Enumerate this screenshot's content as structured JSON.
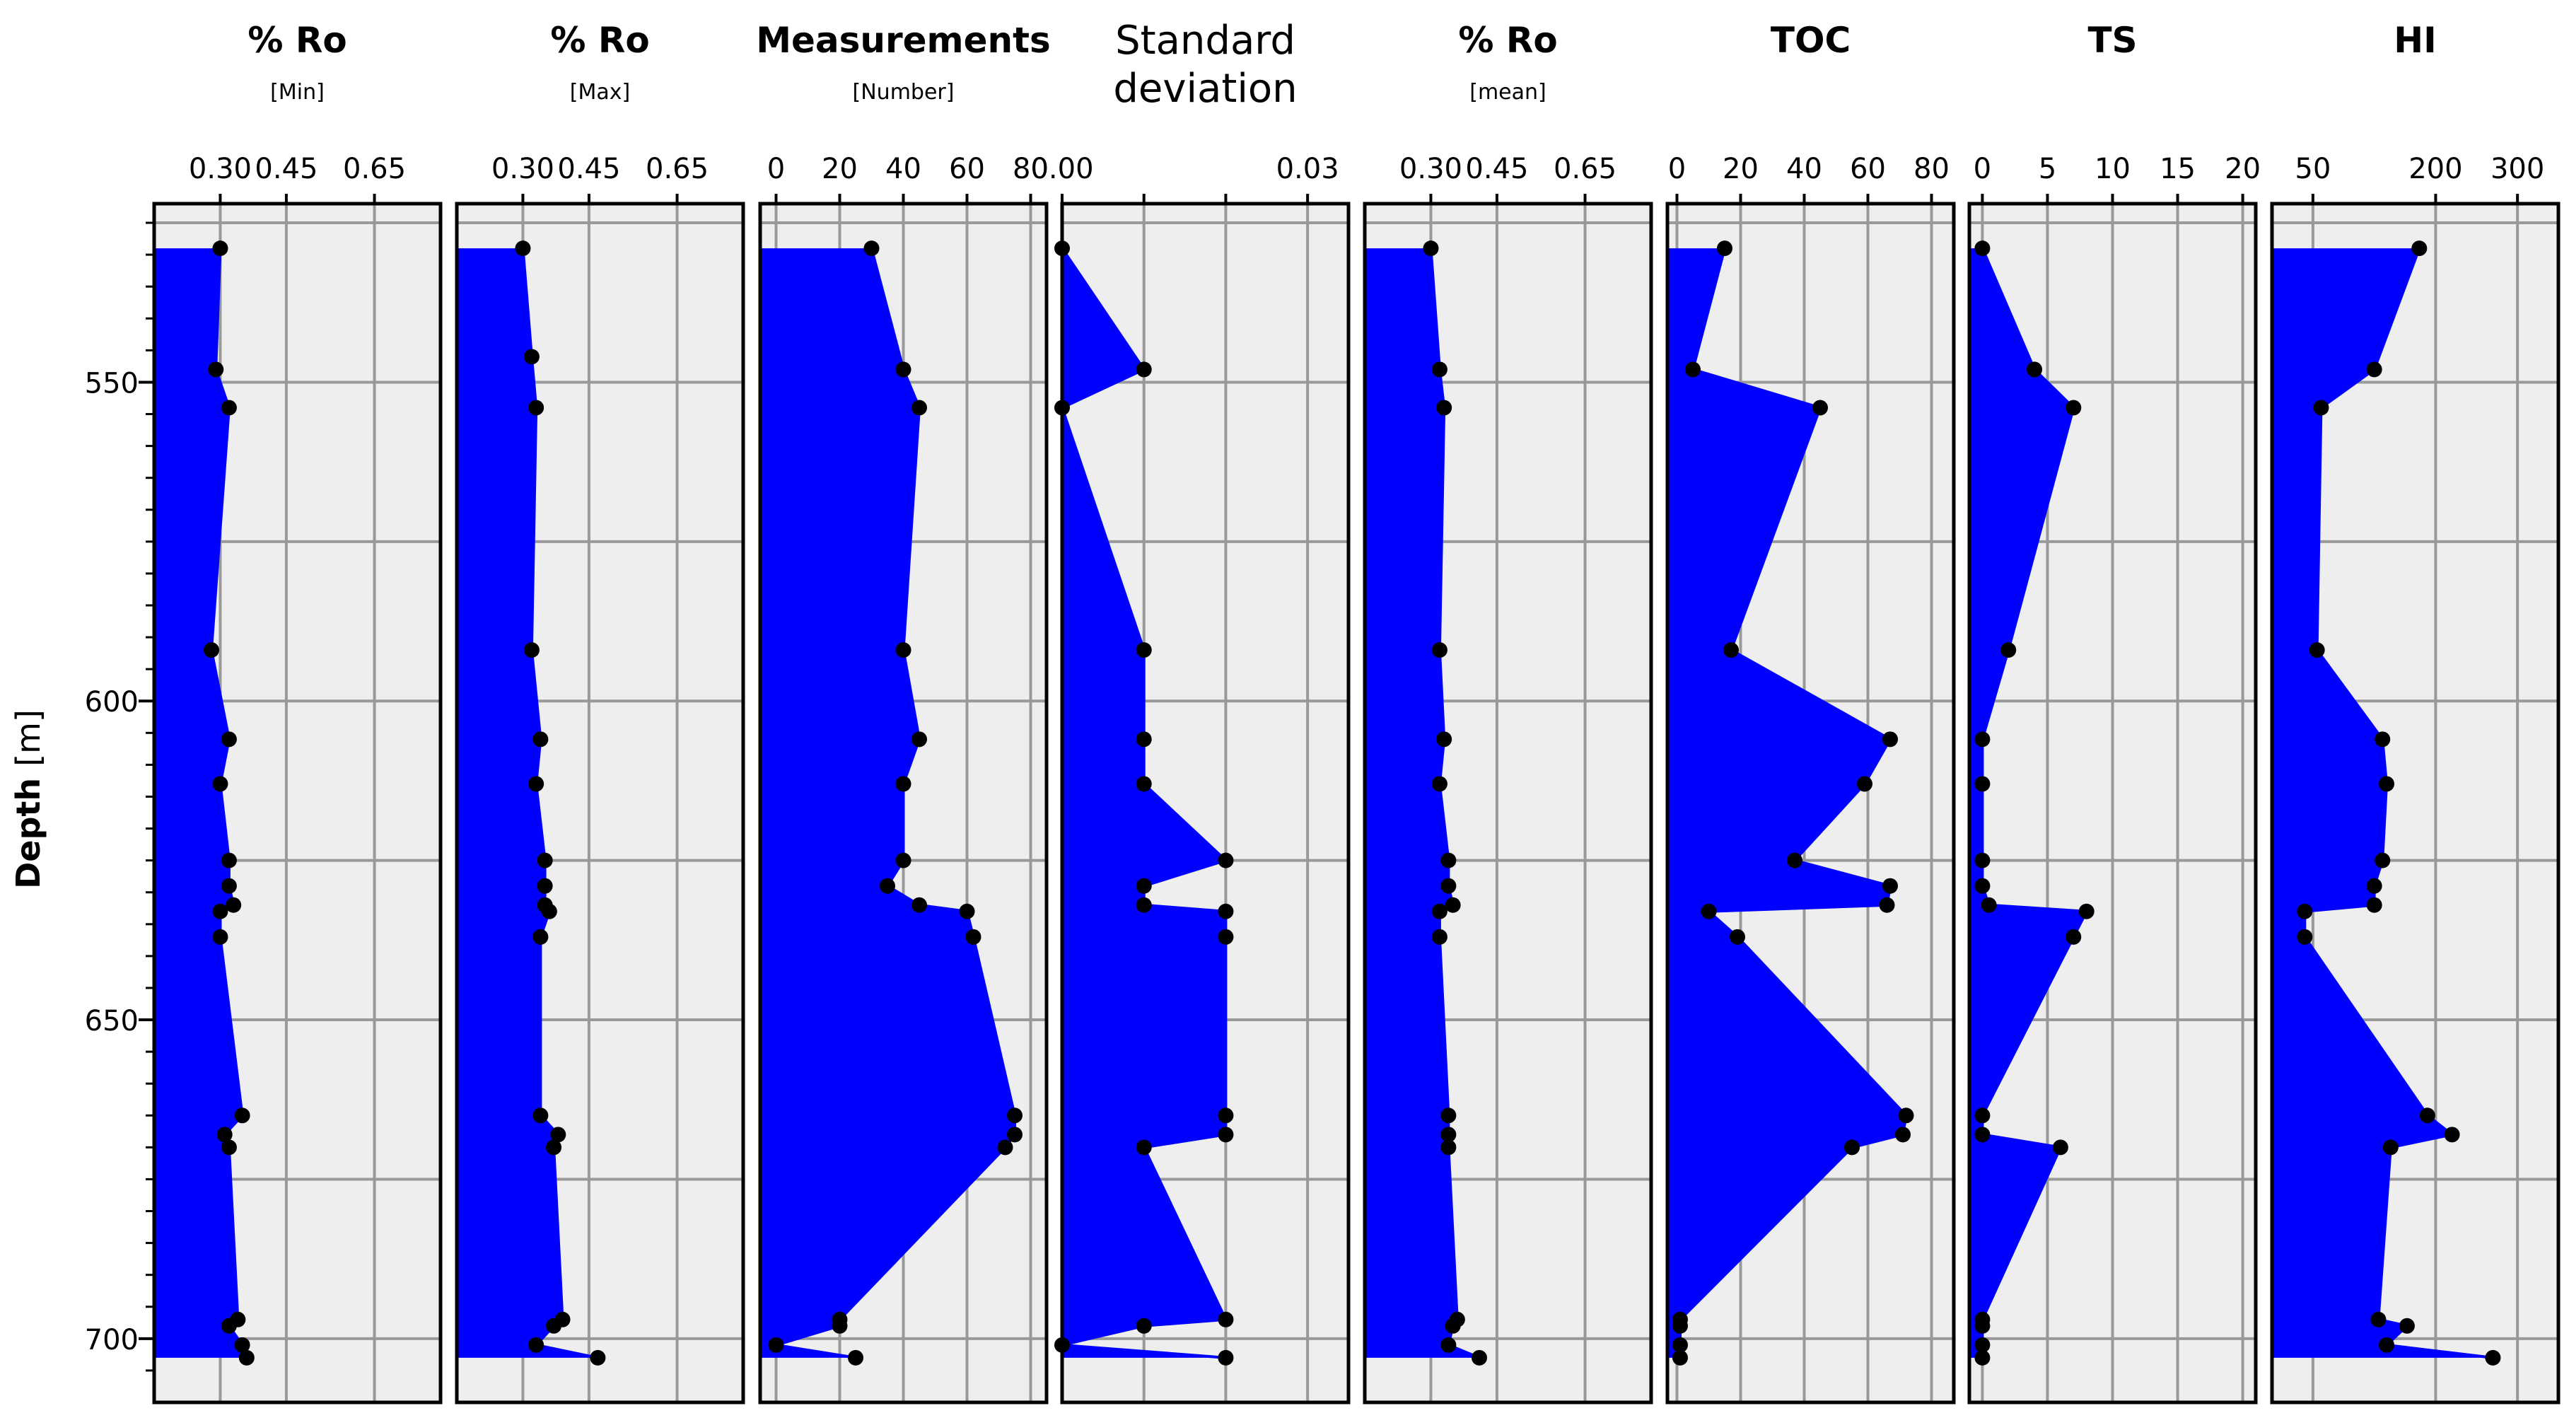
{
  "figure": {
    "ylabel": "Depth",
    "yunit": "[m]",
    "depth_ticks": [
      "550",
      "600",
      "650",
      "700"
    ]
  },
  "colors": {
    "fill": "#0000ff",
    "point": "#000000",
    "panel_bg": "#eeeeee",
    "grid": "#999999",
    "frame": "#000000"
  },
  "chart_data": [
    {
      "type": "area",
      "orientation": "vertical-depth-log",
      "title": "% Ro",
      "subtitle": "[Min]",
      "xlim": [
        0.15,
        0.8
      ],
      "ylim": [
        522,
        710
      ],
      "xticks": [
        0.3,
        0.45,
        0.65
      ],
      "xtick_labels": [
        "0.30",
        "0.45",
        "0.65"
      ],
      "x": [
        0.3,
        0.29,
        0.32,
        0.28,
        0.32,
        0.3,
        0.32,
        0.32,
        0.33,
        0.3,
        0.3,
        0.35,
        0.31,
        0.32,
        0.34,
        0.32,
        0.35,
        0.36
      ],
      "depth": [
        529,
        548,
        554,
        592,
        606,
        613,
        625,
        629,
        632,
        633,
        637,
        665,
        668,
        670,
        697,
        698,
        701,
        703
      ]
    },
    {
      "type": "area",
      "orientation": "vertical-depth-log",
      "title": "% Ro",
      "subtitle": "[Max]",
      "xlim": [
        0.15,
        0.8
      ],
      "ylim": [
        522,
        710
      ],
      "xticks": [
        0.3,
        0.45,
        0.65
      ],
      "xtick_labels": [
        "0.30",
        "0.45",
        "0.65"
      ],
      "x": [
        0.3,
        0.32,
        0.33,
        0.32,
        0.34,
        0.33,
        0.35,
        0.35,
        0.35,
        0.36,
        0.34,
        0.34,
        0.38,
        0.37,
        0.39,
        0.37,
        0.33,
        0.47
      ],
      "depth": [
        529,
        546,
        554,
        592,
        606,
        613,
        625,
        629,
        632,
        633,
        637,
        665,
        668,
        670,
        697,
        698,
        701,
        703
      ]
    },
    {
      "type": "area",
      "orientation": "vertical-depth-log",
      "title": "Measurements",
      "subtitle": "[Number]",
      "xlim": [
        -5,
        85
      ],
      "ylim": [
        522,
        710
      ],
      "xticks": [
        0,
        20,
        40,
        60,
        80
      ],
      "xtick_labels": [
        "0",
        "20",
        "40",
        "60",
        "80"
      ],
      "x": [
        30,
        40,
        45,
        40,
        45,
        40,
        40,
        35,
        45,
        60,
        62,
        75,
        75,
        72,
        20,
        20,
        0,
        25
      ],
      "depth": [
        529,
        548,
        554,
        592,
        606,
        613,
        625,
        629,
        632,
        633,
        637,
        665,
        668,
        670,
        697,
        698,
        701,
        703
      ]
    },
    {
      "type": "area",
      "orientation": "vertical-depth-log",
      "title": "Standard deviation",
      "subtitle": "",
      "xlim": [
        0,
        0.035
      ],
      "ylim": [
        522,
        710
      ],
      "xticks": [
        0,
        0.01,
        0.02,
        0.03
      ],
      "xtick_labels": [
        "0.00",
        "",
        "",
        "0.03"
      ],
      "x": [
        0,
        0.01,
        0,
        0.01,
        0.01,
        0.01,
        0.02,
        0.01,
        0.01,
        0.02,
        0.02,
        0.02,
        0.02,
        0.01,
        0.02,
        0.01,
        0,
        0.02
      ],
      "depth": [
        529,
        548,
        554,
        592,
        606,
        613,
        625,
        629,
        632,
        633,
        637,
        665,
        668,
        670,
        697,
        698,
        701,
        703
      ]
    },
    {
      "type": "area",
      "orientation": "vertical-depth-log",
      "title": "% Ro",
      "subtitle": "[mean]",
      "xlim": [
        0.15,
        0.8
      ],
      "ylim": [
        522,
        710
      ],
      "xticks": [
        0.3,
        0.45,
        0.65
      ],
      "xtick_labels": [
        "0.30",
        "0.45",
        "0.65"
      ],
      "x": [
        0.3,
        0.32,
        0.33,
        0.32,
        0.33,
        0.32,
        0.34,
        0.34,
        0.35,
        0.32,
        0.32,
        0.34,
        0.34,
        0.34,
        0.36,
        0.35,
        0.34,
        0.41
      ],
      "depth": [
        529,
        548,
        554,
        592,
        606,
        613,
        625,
        629,
        632,
        633,
        637,
        665,
        668,
        670,
        697,
        698,
        701,
        703
      ]
    },
    {
      "type": "area",
      "orientation": "vertical-depth-log",
      "title": "TOC",
      "subtitle": "",
      "xlim": [
        -3,
        87
      ],
      "ylim": [
        522,
        710
      ],
      "xticks": [
        0,
        20,
        40,
        60,
        80
      ],
      "xtick_labels": [
        "0",
        "20",
        "40",
        "60",
        "80"
      ],
      "x": [
        15,
        5,
        45,
        17,
        67,
        59,
        37,
        67,
        66,
        10,
        19,
        72,
        71,
        55,
        1,
        1,
        1,
        1
      ],
      "depth": [
        529,
        548,
        554,
        592,
        606,
        613,
        625,
        629,
        632,
        633,
        637,
        665,
        668,
        670,
        697,
        698,
        701,
        703
      ]
    },
    {
      "type": "area",
      "orientation": "vertical-depth-log",
      "title": "TS",
      "subtitle": "",
      "xlim": [
        -1,
        21
      ],
      "ylim": [
        522,
        710
      ],
      "xticks": [
        0,
        5,
        10,
        15,
        20
      ],
      "xtick_labels": [
        "0",
        "5",
        "10",
        "15",
        "20"
      ],
      "x": [
        0,
        4,
        7,
        2,
        0,
        0,
        0,
        0,
        0.5,
        8,
        7,
        0,
        0,
        6,
        0,
        0,
        0,
        0
      ],
      "depth": [
        529,
        548,
        554,
        592,
        606,
        613,
        625,
        629,
        632,
        633,
        637,
        665,
        668,
        670,
        697,
        698,
        701,
        703
      ]
    },
    {
      "type": "area",
      "orientation": "vertical-depth-log",
      "title": "HI",
      "subtitle": "",
      "xlim": [
        0,
        350
      ],
      "ylim": [
        522,
        710
      ],
      "xticks": [
        50,
        200,
        300
      ],
      "xtick_labels": [
        "50",
        "200",
        "300"
      ],
      "x": [
        180,
        125,
        60,
        55,
        135,
        140,
        135,
        125,
        125,
        40,
        40,
        190,
        220,
        145,
        130,
        165,
        140,
        270
      ],
      "depth": [
        529,
        548,
        554,
        592,
        606,
        613,
        625,
        629,
        632,
        633,
        637,
        665,
        668,
        670,
        697,
        698,
        701,
        703
      ]
    }
  ]
}
